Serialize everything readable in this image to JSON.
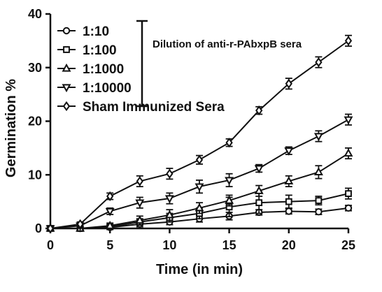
{
  "chart_data": {
    "type": "line",
    "xlabel": "Time (in min)",
    "ylabel": "Germination %",
    "xlim": [
      0,
      25
    ],
    "ylim": [
      0,
      40
    ],
    "x_ticks": [
      0,
      5,
      10,
      15,
      20,
      25
    ],
    "y_ticks": [
      0,
      10,
      20,
      30,
      40
    ],
    "x_tick_labels": [
      "0",
      "5",
      "10",
      "15",
      "20",
      "25"
    ],
    "y_tick_labels": [
      "0",
      "10",
      "20",
      "30",
      "40"
    ],
    "grid": false,
    "legend_position": "top-left",
    "annotation": "Dilution of anti-r-PAbxpB sera",
    "series": [
      {
        "name": "1:10",
        "marker": "circle",
        "x": [
          0,
          2.5,
          5,
          7.5,
          10,
          12.5,
          15,
          17.5,
          20,
          22.5,
          25
        ],
        "y": [
          0,
          0,
          0.2,
          0.8,
          1.2,
          1.8,
          2.3,
          3.0,
          3.2,
          3.1,
          3.8
        ],
        "err": [
          0.3,
          0.3,
          0.3,
          0.5,
          0.5,
          0.6,
          0.7,
          0.5,
          0.5,
          0.5,
          0.5
        ]
      },
      {
        "name": "1:100",
        "marker": "square",
        "x": [
          0,
          2.5,
          5,
          7.5,
          10,
          12.5,
          15,
          17.5,
          20,
          22.5,
          25
        ],
        "y": [
          0,
          0,
          0.3,
          1.2,
          2.0,
          2.8,
          4.0,
          4.8,
          5.0,
          5.2,
          6.5
        ],
        "err": [
          0.3,
          0.3,
          0.4,
          0.6,
          0.8,
          1.0,
          1.8,
          2.0,
          1.2,
          0.8,
          1.0
        ]
      },
      {
        "name": "1:1000",
        "marker": "triangle-up",
        "x": [
          0,
          2.5,
          5,
          7.5,
          10,
          12.5,
          15,
          17.5,
          20,
          22.5,
          25
        ],
        "y": [
          0,
          0,
          0.5,
          1.5,
          2.5,
          3.8,
          5.2,
          7.0,
          8.8,
          10.5,
          14.0
        ],
        "err": [
          0.3,
          0.3,
          0.5,
          0.8,
          1.0,
          1.0,
          1.0,
          1.0,
          1.0,
          1.2,
          1.0
        ]
      },
      {
        "name": "1:10000",
        "marker": "triangle-down",
        "x": [
          0,
          2.5,
          5,
          7.5,
          10,
          12.5,
          15,
          17.5,
          20,
          22.5,
          25
        ],
        "y": [
          0,
          0.5,
          3.2,
          4.8,
          5.6,
          7.8,
          9.0,
          11.2,
          14.5,
          17.2,
          20.3
        ],
        "err": [
          0.3,
          0.4,
          0.6,
          1.0,
          1.0,
          1.2,
          1.2,
          0.7,
          0.7,
          1.0,
          1.0
        ]
      },
      {
        "name": "Sham Immunized Sera",
        "marker": "diamond",
        "x": [
          0,
          2.5,
          5,
          7.5,
          10,
          12.5,
          15,
          17.5,
          20,
          22.5,
          25
        ],
        "y": [
          0,
          0.8,
          6.0,
          8.8,
          10.2,
          12.8,
          16.0,
          22.0,
          27.0,
          31.0,
          35.0
        ],
        "err": [
          0.3,
          0.4,
          0.6,
          1.0,
          1.0,
          0.8,
          0.7,
          0.7,
          1.0,
          1.0,
          1.0
        ]
      }
    ]
  }
}
